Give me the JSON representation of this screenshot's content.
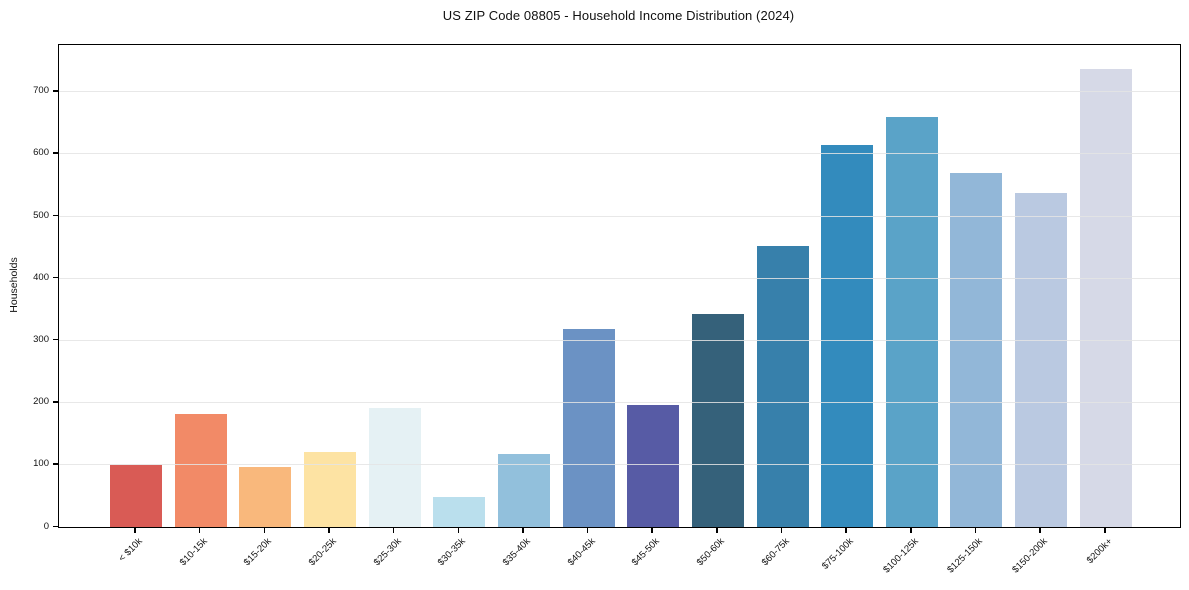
{
  "figure": {
    "title": "US ZIP Code 08805 - Household Income Distribution (2024)"
  },
  "chart_data": {
    "type": "bar",
    "title": "US ZIP Code 08805 - Household Income Distribution (2024)",
    "xlabel": "",
    "ylabel": "Households",
    "categories": [
      "< $10k",
      "$10-15k",
      "$15-20k",
      "$20-25k",
      "$25-30k",
      "$30-35k",
      "$35-40k",
      "$40-45k",
      "$45-50k",
      "$50-60k",
      "$60-75k",
      "$75-100k",
      "$100-125k",
      "$125-150k",
      "$150-200k",
      "$200k+"
    ],
    "values": [
      99,
      181,
      97,
      121,
      192,
      49,
      117,
      319,
      196,
      342,
      452,
      615,
      660,
      569,
      537,
      736
    ],
    "bar_colors": [
      "#d95b55",
      "#f28a67",
      "#f9b87c",
      "#fde3a3",
      "#e5f1f4",
      "#badfed",
      "#92c0dc",
      "#6b92c4",
      "#575ba5",
      "#35617a",
      "#3780ab",
      "#338bbd",
      "#5aa3c8",
      "#92b7d8",
      "#bac9e1",
      "#d6d9e7"
    ],
    "yticks": [
      0,
      100,
      200,
      300,
      400,
      500,
      600,
      700
    ],
    "ylim": [
      0,
      775
    ],
    "grid": "horizontal",
    "gridline_color": "#e4e4e4",
    "legend": "none",
    "x_tick_rotation": 45,
    "spine_color": "#000000",
    "background_color": "#ffffff"
  }
}
